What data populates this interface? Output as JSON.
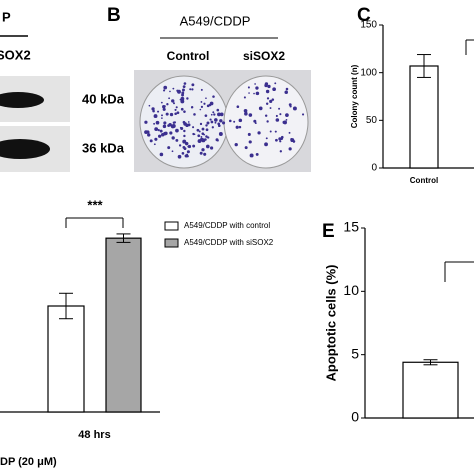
{
  "panel_a": {
    "header": "P",
    "lane": "SOX2",
    "bands": [
      "40 kDa",
      "36 kDa"
    ]
  },
  "panel_b": {
    "label": "B",
    "header": "A549/CDDP",
    "lanes": [
      "Control",
      "siSOX2"
    ]
  },
  "chart_data": [
    {
      "type": "bar",
      "label": "C",
      "ylabel": "Colony count (n)",
      "categories": [
        "Control"
      ],
      "values": [
        107
      ],
      "errors": [
        12
      ],
      "color": "#ffffff",
      "ylim": [
        0,
        150
      ],
      "yticks": [
        0,
        50,
        100,
        150
      ]
    },
    {
      "type": "bar",
      "annotation": "***",
      "xlabel": "DP (20 μM)",
      "categories": [
        "48 hrs"
      ],
      "series": [
        {
          "name": "A549/CDDP with control",
          "color": "#ffffff",
          "values": [
            50
          ],
          "errors": [
            6
          ]
        },
        {
          "name": "A549/CDDP with siSOX2",
          "color": "#a6a6a6",
          "values": [
            82
          ],
          "errors": [
            2
          ]
        }
      ],
      "ylim": [
        0,
        100
      ]
    },
    {
      "type": "bar",
      "label": "E",
      "ylabel": "Apoptotic cells (%)",
      "categories": [
        null
      ],
      "values": [
        4.4
      ],
      "errors": [
        0.2
      ],
      "color": "#ffffff",
      "ylim": [
        0,
        15
      ],
      "yticks": [
        0,
        5,
        10,
        15
      ]
    }
  ]
}
